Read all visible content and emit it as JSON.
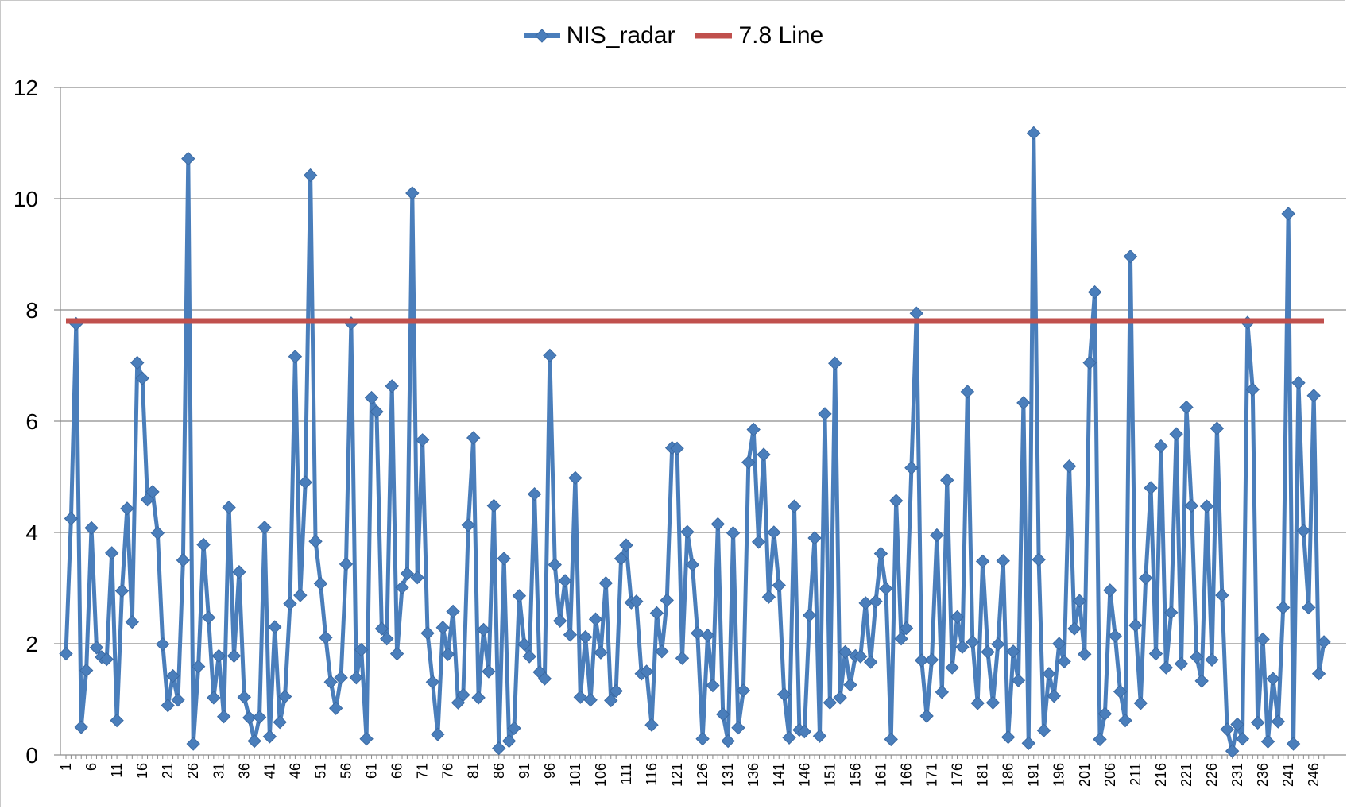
{
  "chart_data": {
    "type": "line",
    "title": "",
    "xlabel": "",
    "ylabel": "",
    "ylim": [
      0,
      12
    ],
    "yticks": [
      0,
      2,
      4,
      6,
      8,
      10,
      12
    ],
    "grid": true,
    "legend_position": "top",
    "x_tick_step": 5,
    "series": [
      {
        "name": "NIS_radar",
        "color": "#4a7ebb",
        "marker": "diamond",
        "values": [
          1.82,
          4.25,
          7.75,
          0.5,
          1.52,
          4.08,
          1.93,
          1.76,
          1.72,
          3.63,
          0.62,
          2.95,
          4.43,
          2.39,
          7.05,
          6.77,
          4.59,
          4.73,
          3.99,
          1.99,
          0.89,
          1.42,
          0.99,
          3.5,
          10.72,
          0.2,
          1.59,
          3.78,
          2.47,
          1.03,
          1.78,
          0.69,
          4.45,
          1.78,
          3.29,
          1.04,
          0.67,
          0.25,
          0.68,
          4.09,
          0.33,
          2.3,
          0.59,
          1.05,
          2.72,
          7.16,
          2.87,
          4.9,
          10.42,
          3.84,
          3.08,
          2.11,
          1.31,
          0.84,
          1.39,
          3.43,
          7.76,
          1.39,
          1.89,
          0.29,
          6.42,
          6.17,
          2.27,
          2.09,
          6.63,
          1.82,
          3.01,
          3.26,
          10.1,
          3.19,
          5.66,
          2.19,
          1.31,
          0.37,
          2.29,
          1.81,
          2.58,
          0.94,
          1.08,
          4.13,
          5.7,
          1.03,
          2.25,
          1.5,
          4.48,
          0.12,
          3.53,
          0.25,
          0.48,
          2.86,
          1.99,
          1.77,
          4.69,
          1.49,
          1.37,
          7.18,
          3.42,
          2.41,
          3.13,
          2.16,
          4.98,
          1.04,
          2.12,
          0.99,
          2.44,
          1.84,
          3.09,
          0.98,
          1.15,
          3.53,
          3.77,
          2.74,
          2.76,
          1.46,
          1.5,
          0.54,
          2.55,
          1.86,
          2.78,
          5.52,
          5.51,
          1.74,
          4.01,
          3.42,
          2.19,
          0.29,
          2.15,
          1.25,
          4.15,
          0.73,
          0.25,
          3.99,
          0.49,
          1.16,
          5.26,
          5.85,
          3.83,
          5.4,
          2.84,
          4.0,
          3.05,
          1.09,
          0.31,
          4.47,
          0.45,
          0.42,
          2.51,
          3.9,
          0.34,
          6.13,
          0.94,
          7.04,
          1.03,
          1.85,
          1.26,
          1.78,
          1.77,
          2.73,
          1.67,
          2.76,
          3.62,
          2.99,
          0.28,
          4.57,
          2.09,
          2.28,
          5.16,
          7.94,
          1.7,
          0.7,
          1.71,
          3.95,
          1.13,
          4.94,
          1.57,
          2.48,
          1.94,
          6.53,
          2.03,
          0.93,
          3.48,
          1.85,
          0.94,
          1.99,
          3.49,
          0.32,
          1.86,
          1.34,
          6.33,
          0.21,
          11.18,
          3.51,
          0.44,
          1.46,
          1.06,
          2.0,
          1.68,
          5.19,
          2.27,
          2.77,
          1.81,
          7.05,
          8.32,
          0.28,
          0.74,
          2.96,
          2.14,
          1.14,
          0.62,
          8.96,
          2.33,
          0.93,
          3.18,
          4.8,
          1.82,
          5.55,
          1.57,
          2.56,
          5.77,
          1.64,
          6.25,
          4.48,
          1.76,
          1.33,
          4.47,
          1.71,
          5.87,
          2.87,
          0.46,
          0.07,
          0.55,
          0.29,
          7.77,
          6.57,
          0.58,
          2.08,
          0.24,
          1.37,
          0.6,
          2.65,
          9.73,
          0.2,
          6.69,
          4.03,
          2.65,
          6.46,
          1.46,
          2.03
        ]
      },
      {
        "name": "7.8 Line",
        "color": "#c0504d",
        "marker": "none",
        "constant": 7.8
      }
    ]
  }
}
